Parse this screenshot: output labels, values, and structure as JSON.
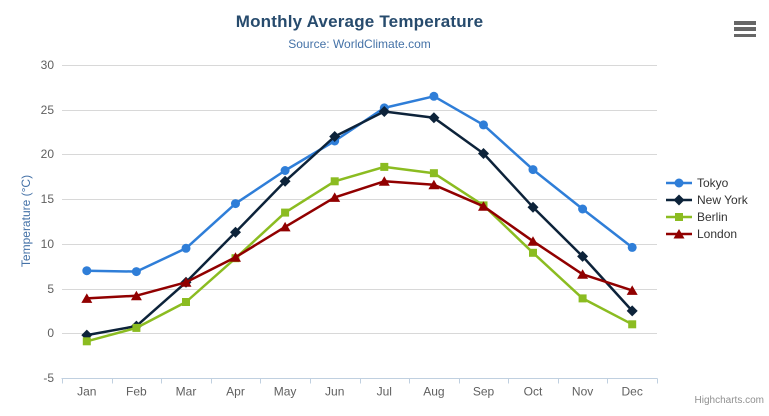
{
  "header": {
    "title": "Monthly Average Temperature",
    "subtitle": "Source: WorldClimate.com"
  },
  "credits": "Highcharts.com",
  "chart_data": {
    "type": "line",
    "title": "Monthly Average Temperature",
    "subtitle": "Source: WorldClimate.com",
    "categories": [
      "Jan",
      "Feb",
      "Mar",
      "Apr",
      "May",
      "Jun",
      "Jul",
      "Aug",
      "Sep",
      "Oct",
      "Nov",
      "Dec"
    ],
    "xlabel": "",
    "ylabel": "Temperature (°C)",
    "ylim": [
      -5,
      30
    ],
    "ytick_interval": 5,
    "grid": true,
    "legend_position": "right",
    "grid_color": "#D8D8D8",
    "axis_color": "#C0D0E0",
    "label_color": "#606060",
    "title_color": "#274B6D",
    "subtitle_color": "#4572A7",
    "legend_text_color": "#333333",
    "credits_color": "#909090",
    "series": [
      {
        "name": "Tokyo",
        "color": "#2f7ed8",
        "marker": "circle",
        "values": [
          7.0,
          6.9,
          9.5,
          14.5,
          18.2,
          21.5,
          25.2,
          26.5,
          23.3,
          18.3,
          13.9,
          9.6
        ]
      },
      {
        "name": "New York",
        "color": "#0d233a",
        "marker": "diamond",
        "values": [
          -0.2,
          0.8,
          5.7,
          11.3,
          17.0,
          22.0,
          24.8,
          24.1,
          20.1,
          14.1,
          8.6,
          2.5
        ]
      },
      {
        "name": "Berlin",
        "color": "#8bbc21",
        "marker": "square",
        "values": [
          -0.9,
          0.6,
          3.5,
          8.4,
          13.5,
          17.0,
          18.6,
          17.9,
          14.3,
          9.0,
          3.9,
          1.0
        ]
      },
      {
        "name": "London",
        "color": "#910000",
        "marker": "triangle",
        "values": [
          3.9,
          4.2,
          5.7,
          8.5,
          11.9,
          15.2,
          17.0,
          16.6,
          14.2,
          10.3,
          6.6,
          4.8
        ]
      }
    ]
  }
}
